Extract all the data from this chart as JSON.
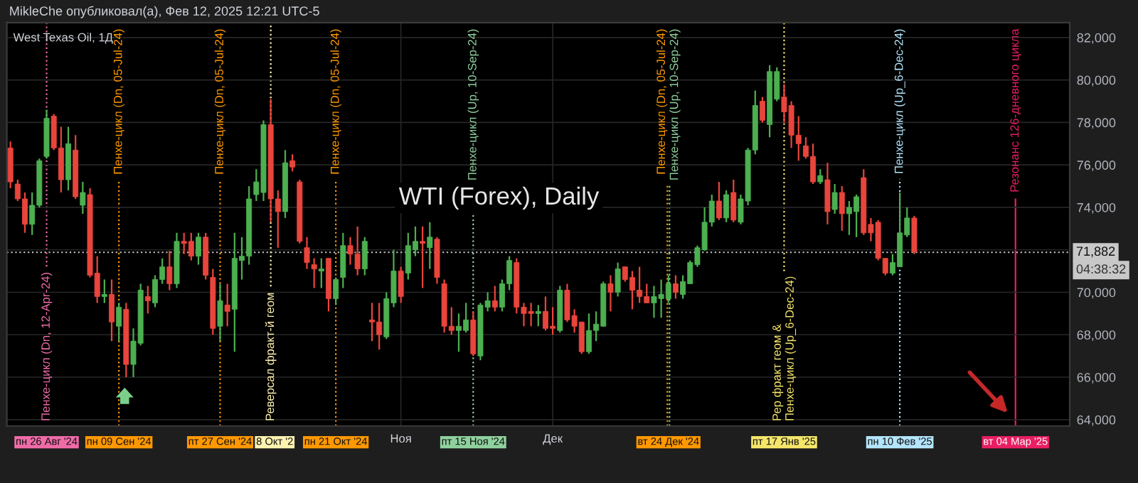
{
  "chart_data": {
    "type": "candlestick",
    "title": "WTI (Forex), Daily",
    "annotations": [
      "MikleChe опубликовал(а), Фев 12, 2025 12:21 UTC-5",
      "West Texas Oil, 1Д",
      "04:38:32"
    ],
    "categories": [
      null,
      null,
      null,
      null,
      null,
      "пн 26 Авг '24",
      null,
      null,
      null,
      null,
      null,
      null,
      null,
      null,
      null,
      "пн 09 Сен '24",
      null,
      null,
      null,
      null,
      null,
      null,
      null,
      null,
      null,
      null,
      null,
      null,
      null,
      "пт 27 Сен '24",
      null,
      null,
      null,
      null,
      null,
      null,
      "8 Окт '2",
      null,
      null,
      null,
      null,
      null,
      null,
      null,
      null,
      "пн 21 Окт '24",
      null,
      null,
      null,
      null,
      null,
      null,
      null,
      null,
      "Ноя",
      null,
      null,
      null,
      null,
      null,
      null,
      null,
      null,
      null,
      "пт 15 Ноя '24",
      null,
      null,
      null,
      null,
      null,
      null,
      null,
      null,
      null,
      null,
      "Дек",
      null,
      null,
      null,
      null,
      null,
      null,
      null,
      null,
      null,
      null,
      null,
      null,
      null,
      null,
      null,
      "вт 24 Дек '24",
      null,
      null,
      null,
      null,
      null,
      null,
      null,
      null,
      null,
      null,
      null,
      null,
      null,
      null,
      null,
      "пт 17 Янв '25",
      null,
      null,
      null,
      null,
      null,
      null,
      null,
      null,
      null,
      null,
      null,
      null,
      null,
      null,
      null,
      "пн 10 Фев '25",
      null,
      null,
      null,
      null,
      null,
      null,
      null,
      null,
      null,
      null,
      null,
      null,
      null,
      null,
      null,
      "вт 04 Мар '25",
      null,
      null,
      null,
      null,
      null,
      null,
      null
    ],
    "ohlc": [
      [
        76800,
        77100,
        74900,
        75200
      ],
      [
        75100,
        75300,
        74300,
        74400
      ],
      [
        74400,
        74700,
        72800,
        73200
      ],
      [
        73200,
        74700,
        72700,
        74100
      ],
      [
        74100,
        76300,
        74000,
        76200
      ],
      [
        76400,
        78600,
        76300,
        78200
      ],
      [
        78300,
        78400,
        76700,
        76800
      ],
      [
        76800,
        77800,
        74700,
        75300
      ],
      [
        75300,
        77800,
        74800,
        77000
      ],
      [
        76700,
        77400,
        74400,
        74500
      ],
      [
        74100,
        75200,
        73700,
        74700
      ],
      [
        74600,
        74900,
        70700,
        70800
      ],
      [
        70900,
        71700,
        69500,
        69800
      ],
      [
        69800,
        70600,
        69500,
        69900
      ],
      [
        69900,
        70600,
        67700,
        68600
      ],
      [
        68400,
        69500,
        67700,
        69300
      ],
      [
        69200,
        69500,
        66000,
        66600
      ],
      [
        66600,
        68300,
        66000,
        67700
      ],
      [
        67600,
        70400,
        67500,
        70100
      ],
      [
        69800,
        70300,
        69000,
        69600
      ],
      [
        69500,
        70800,
        69300,
        70600
      ],
      [
        70600,
        71600,
        70400,
        71200
      ],
      [
        71200,
        71950,
        70100,
        70400
      ],
      [
        70400,
        72800,
        70200,
        72400
      ],
      [
        72400,
        72800,
        71800,
        72300
      ],
      [
        72400,
        72800,
        71500,
        71700
      ],
      [
        71700,
        72800,
        71300,
        72600
      ],
      [
        72600,
        72800,
        70600,
        70800
      ],
      [
        70700,
        71100,
        68000,
        68300
      ],
      [
        68400,
        70400,
        67700,
        69600
      ],
      [
        69400,
        70400,
        68400,
        69100
      ],
      [
        69200,
        72800,
        67200,
        71600
      ],
      [
        71500,
        72600,
        70600,
        71700
      ],
      [
        71700,
        75000,
        71300,
        74400
      ],
      [
        74600,
        75800,
        74300,
        75200
      ],
      [
        74700,
        78100,
        74300,
        77900
      ],
      [
        77900,
        79100,
        73300,
        74400
      ],
      [
        74400,
        74800,
        72100,
        73800
      ],
      [
        73800,
        76700,
        73500,
        76100
      ],
      [
        76200,
        76500,
        75700,
        75900
      ],
      [
        75200,
        75300,
        72300,
        72400
      ],
      [
        72100,
        72600,
        71100,
        71400
      ],
      [
        71300,
        71600,
        70200,
        71100
      ],
      [
        71000,
        71600,
        70200,
        71100
      ],
      [
        71600,
        71600,
        69100,
        69700
      ],
      [
        69700,
        70700,
        69400,
        70600
      ],
      [
        70700,
        72800,
        70200,
        72200
      ],
      [
        72200,
        72600,
        71300,
        71800
      ],
      [
        71800,
        73100,
        70800,
        71100
      ],
      [
        71100,
        72600,
        70800,
        72400
      ],
      [
        68700,
        69500,
        67700,
        68600
      ],
      [
        68600,
        69500,
        67300,
        68000
      ],
      [
        67900,
        70000,
        67800,
        69700
      ],
      [
        69500,
        72000,
        69300,
        71000
      ],
      [
        71000,
        71200,
        69500,
        69800
      ],
      [
        70900,
        72800,
        70600,
        72200
      ],
      [
        72000,
        73100,
        71700,
        72400
      ],
      [
        72400,
        73100,
        70200,
        72300
      ],
      [
        72100,
        73300,
        71100,
        72600
      ],
      [
        72500,
        72600,
        70400,
        70700
      ],
      [
        70400,
        70600,
        68100,
        68400
      ],
      [
        68400,
        69300,
        68000,
        68200
      ],
      [
        68200,
        69000,
        67200,
        68400
      ],
      [
        68200,
        69500,
        68100,
        68700
      ],
      [
        68700,
        69100,
        67000,
        67100
      ],
      [
        67000,
        69500,
        66800,
        69400
      ],
      [
        69300,
        70000,
        69100,
        69600
      ],
      [
        69600,
        70300,
        69100,
        69300
      ],
      [
        69300,
        70600,
        69100,
        70400
      ],
      [
        70400,
        71700,
        70100,
        71500
      ],
      [
        71400,
        71600,
        69000,
        69300
      ],
      [
        69300,
        69500,
        68400,
        69000
      ],
      [
        69100,
        69500,
        68400,
        69000
      ],
      [
        69000,
        69400,
        68400,
        69100
      ],
      [
        69100,
        69800,
        68200,
        68300
      ],
      [
        68400,
        69300,
        68000,
        68300
      ],
      [
        68200,
        70300,
        68100,
        70100
      ],
      [
        70100,
        70400,
        68600,
        68700
      ],
      [
        68900,
        69200,
        68100,
        68400
      ],
      [
        68600,
        68600,
        67100,
        67200
      ],
      [
        67200,
        69000,
        67100,
        68200
      ],
      [
        68200,
        69100,
        67700,
        68500
      ],
      [
        68400,
        70500,
        68400,
        70400
      ],
      [
        70400,
        70800,
        69100,
        70000
      ],
      [
        70000,
        71400,
        69800,
        71100
      ],
      [
        71200,
        71200,
        70500,
        70600
      ],
      [
        70700,
        71000,
        69200,
        70100
      ],
      [
        70100,
        71200,
        69500,
        69800
      ],
      [
        69800,
        70400,
        69500,
        69500
      ],
      [
        69500,
        70300,
        68800,
        69800
      ],
      [
        69700,
        70600,
        68800,
        69900
      ],
      [
        69700,
        70800,
        69500,
        70400
      ],
      [
        70400,
        70800,
        69700,
        70000
      ],
      [
        69900,
        70800,
        69700,
        70500
      ],
      [
        70400,
        71500,
        70400,
        71400
      ],
      [
        71300,
        72200,
        71200,
        72100
      ],
      [
        72000,
        74000,
        71960,
        73300
      ],
      [
        73300,
        74600,
        73100,
        74300
      ],
      [
        74300,
        75200,
        73400,
        73500
      ],
      [
        73500,
        74800,
        73300,
        74600
      ],
      [
        74700,
        75300,
        73300,
        73400
      ],
      [
        73300,
        74600,
        73200,
        74400
      ],
      [
        74300,
        76800,
        74100,
        76700
      ],
      [
        76700,
        79500,
        76500,
        78800
      ],
      [
        79000,
        79200,
        78000,
        78100
      ],
      [
        77900,
        80700,
        77300,
        80400
      ],
      [
        79100,
        80600,
        79000,
        80400
      ],
      [
        79200,
        79800,
        78000,
        78500
      ],
      [
        78800,
        79000,
        76800,
        77400
      ],
      [
        77400,
        78300,
        76200,
        77000
      ],
      [
        76900,
        77300,
        76300,
        76400
      ],
      [
        76400,
        77000,
        75100,
        75200
      ],
      [
        75200,
        75800,
        75100,
        75500
      ],
      [
        75300,
        76100,
        73200,
        73800
      ],
      [
        73900,
        75100,
        73700,
        74700
      ],
      [
        74700,
        75000,
        72900,
        73700
      ],
      [
        73700,
        74300,
        72700,
        74000
      ],
      [
        73800,
        74600,
        72600,
        74500
      ],
      [
        75400,
        75800,
        72700,
        72800
      ],
      [
        73200,
        73500,
        72400,
        72800
      ],
      [
        73300,
        73400,
        71500,
        71600
      ],
      [
        71600,
        71600,
        70800,
        70900
      ],
      [
        70900,
        71800,
        70800,
        71400
      ],
      [
        71200,
        74700,
        71200,
        72800
      ],
      [
        72700,
        74000,
        72600,
        73500
      ],
      [
        73500,
        73600,
        71800,
        71900
      ],
      null,
      null,
      null,
      null,
      null,
      null,
      null,
      null,
      null,
      null,
      null,
      null,
      null,
      null,
      null,
      null,
      null,
      null,
      null,
      null,
      null
    ],
    "ylim": [
      63700,
      82700
    ],
    "yticks": [
      {
        "value": 64000,
        "label": "64,000"
      },
      {
        "value": 66000,
        "label": "66,000"
      },
      {
        "value": 68000,
        "label": "68,000"
      },
      {
        "value": 70000,
        "label": "70,000"
      },
      {
        "value": 72000,
        "label": null
      },
      {
        "value": 74000,
        "label": "74,000"
      },
      {
        "value": 76000,
        "label": "76,000"
      },
      {
        "value": 78000,
        "label": "78,000"
      },
      {
        "value": 80000,
        "label": "80,000"
      },
      {
        "value": 82000,
        "label": "82,000"
      }
    ],
    "grid": true,
    "ref_lines": [
      {
        "axis": "x",
        "value": "пн 26 Авг '24",
        "label": "Пенхе-цикл (Dn, 12-Apr-24)",
        "color": "#f06ba8",
        "line_style": "dotted"
      },
      {
        "axis": "x",
        "value": "пн 09 Сен '24",
        "label": "Пенхе-цикл (Dn, 05-Jul-24)",
        "color": "#ff9800",
        "line_style": "dotted"
      },
      {
        "axis": "x",
        "value": "пт 27 Сен '24",
        "label": "Пенхе-цикл (Dn, 05-Jul-24)",
        "color": "#ff9800",
        "line_style": "dotted"
      },
      {
        "axis": "x",
        "value": "8 Окт '2",
        "label": "Реверсал фракт-й геом",
        "color": "#fff3b0",
        "line_style": "dotted"
      },
      {
        "axis": "x",
        "value": "пн 21 Окт '24",
        "label": "Пенхе-цикл (Dn, 05-Jul-24)",
        "color": "#ff9800",
        "line_style": "dotted"
      },
      {
        "axis": "x",
        "value": "пт 15 Ноя '24",
        "label": "Пенхе-цикл (Up, 10-Sep-24)",
        "color": "#8fd19e",
        "line_style": "dotted"
      },
      {
        "axis": "x",
        "value": "вт 24 Дек '24",
        "label": "Пенхе-цикл (Dn, 05-Jul-24)",
        "color": "#ff9800",
        "line_style": "dotted"
      },
      {
        "axis": "x",
        "value": "вт 24 Дек '24",
        "label": "Пенхе-цикл (Up, 10-Sep-24)",
        "color": "#8fd19e",
        "line_style": "dotted"
      },
      {
        "axis": "x",
        "value": "пт 17 Янв '25",
        "label": "Рер фракт геом &\nПенхе-цикл (Up_6-Dec-24)",
        "color": "#f5e66a",
        "line_style": "dotted"
      },
      {
        "axis": "x",
        "value": "пн 10 Фев '25",
        "label": "Пенхе-цикл (Up_6-Dec-24)",
        "color": "#b3e5fc",
        "line_style": "dotted"
      },
      {
        "axis": "x",
        "value": "вт 04 Мар '25",
        "label": "Резонанс 126-дневного цикла",
        "color": "#e91e63",
        "line_style": "solid"
      },
      {
        "axis": "y",
        "value": 71882,
        "label": "71,882",
        "color": "#c8c8c8",
        "line_style": "dotted"
      }
    ]
  }
}
